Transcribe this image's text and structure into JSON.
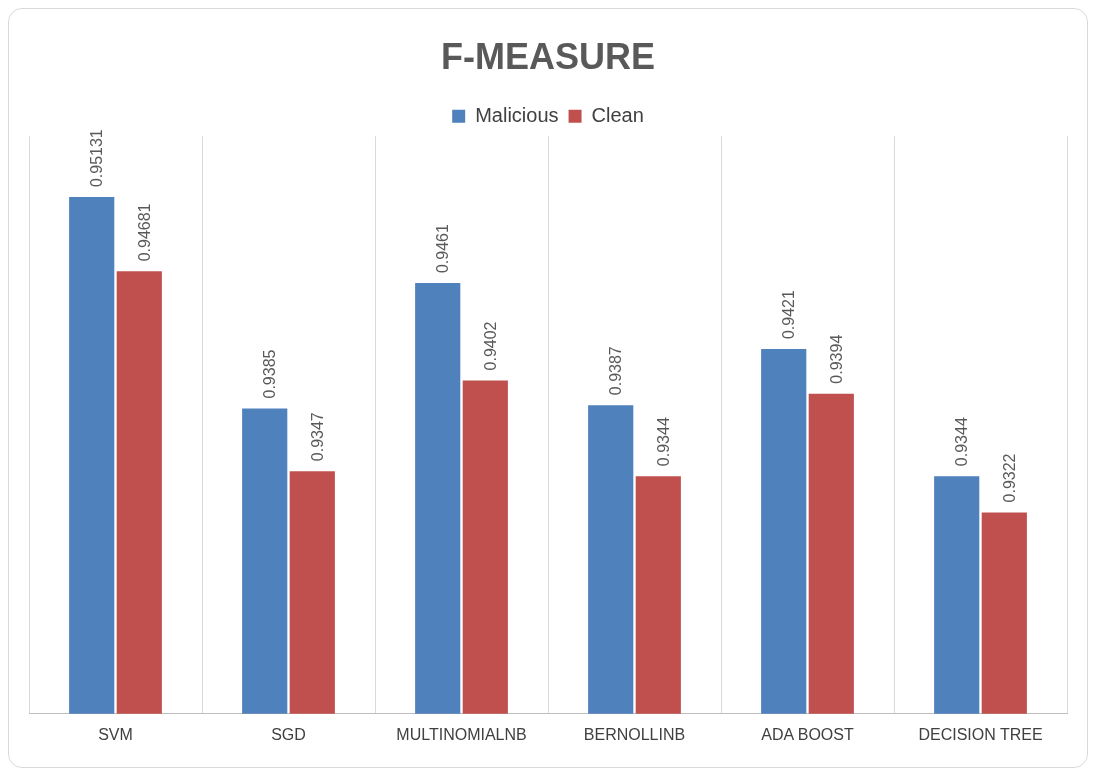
{
  "chart_data": {
    "type": "bar",
    "title": "F-MEASURE",
    "categories": [
      "SVM",
      "SGD",
      "MULTINOMIALNB",
      "BERNOLLINB",
      "ADA BOOST",
      "DECISION TREE"
    ],
    "series": [
      {
        "name": "Malicious",
        "color": "#4f81bd",
        "values": [
          0.95131,
          0.9385,
          0.9461,
          0.9387,
          0.9421,
          0.9344
        ]
      },
      {
        "name": "Clean",
        "color": "#c0504d",
        "values": [
          0.94681,
          0.9347,
          0.9402,
          0.9344,
          0.9394,
          0.9322
        ]
      }
    ],
    "ylim": [
      0.92,
      0.955
    ],
    "tick_labels": "x",
    "grid": "x",
    "legend": "top",
    "data_labels": true
  }
}
